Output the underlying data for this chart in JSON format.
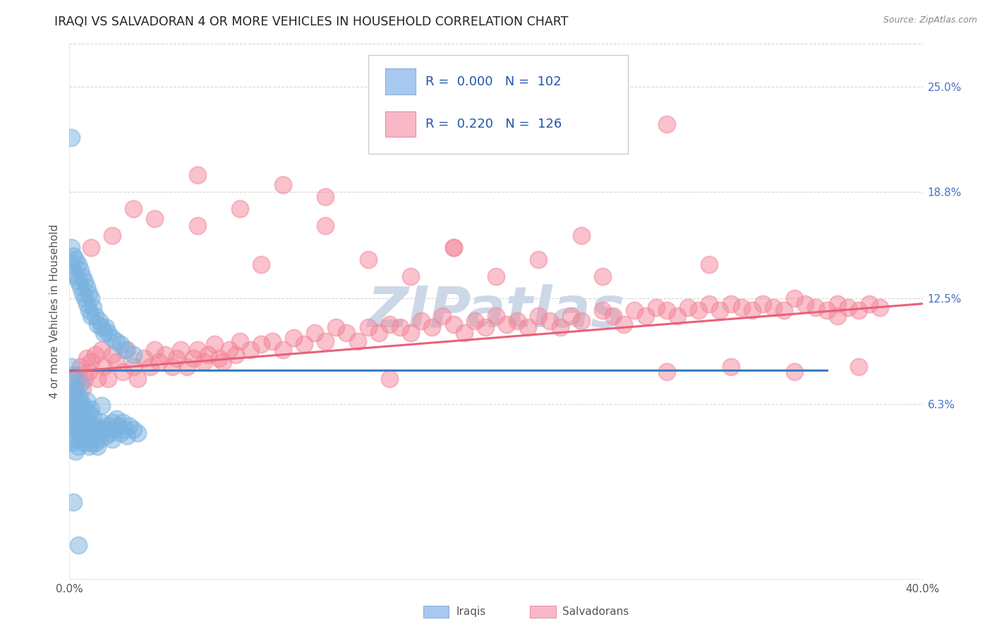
{
  "title": "IRAQI VS SALVADORAN 4 OR MORE VEHICLES IN HOUSEHOLD CORRELATION CHART",
  "source_text": "Source: ZipAtlas.com",
  "ylabel": "4 or more Vehicles in Household",
  "xlim": [
    0.0,
    0.4
  ],
  "ylim": [
    -0.04,
    0.275
  ],
  "ytick_positions": [
    0.063,
    0.125,
    0.188,
    0.25
  ],
  "yticklabels": [
    "6.3%",
    "12.5%",
    "18.8%",
    "25.0%"
  ],
  "iraqi_color": "#7ab3e0",
  "salvadoran_color": "#f4879a",
  "iraqi_line_color": "#3d7cbf",
  "salvadoran_line_color": "#e8607a",
  "grid_color": "#cccccc",
  "watermark_color": "#ccd8e8",
  "background_color": "#ffffff",
  "legend_iraqi_color": "#a8c8f0",
  "legend_salv_color": "#f8b8c8",
  "iraqi_x": [
    0.001,
    0.001,
    0.001,
    0.001,
    0.001,
    0.001,
    0.001,
    0.002,
    0.002,
    0.002,
    0.002,
    0.002,
    0.002,
    0.003,
    0.003,
    0.003,
    0.003,
    0.003,
    0.004,
    0.004,
    0.004,
    0.004,
    0.005,
    0.005,
    0.005,
    0.005,
    0.006,
    0.006,
    0.006,
    0.007,
    0.007,
    0.007,
    0.008,
    0.008,
    0.008,
    0.009,
    0.009,
    0.009,
    0.01,
    0.01,
    0.01,
    0.011,
    0.011,
    0.012,
    0.012,
    0.013,
    0.013,
    0.014,
    0.015,
    0.015,
    0.016,
    0.017,
    0.018,
    0.019,
    0.02,
    0.02,
    0.021,
    0.022,
    0.023,
    0.024,
    0.025,
    0.026,
    0.027,
    0.028,
    0.03,
    0.032,
    0.001,
    0.001,
    0.002,
    0.002,
    0.003,
    0.003,
    0.004,
    0.004,
    0.005,
    0.005,
    0.006,
    0.006,
    0.007,
    0.007,
    0.008,
    0.008,
    0.009,
    0.009,
    0.01,
    0.01,
    0.011,
    0.012,
    0.013,
    0.014,
    0.015,
    0.016,
    0.017,
    0.018,
    0.02,
    0.022,
    0.024,
    0.026,
    0.03,
    0.001,
    0.002,
    0.004
  ],
  "iraqi_y": [
    0.055,
    0.065,
    0.075,
    0.085,
    0.05,
    0.06,
    0.04,
    0.06,
    0.07,
    0.08,
    0.05,
    0.045,
    0.058,
    0.062,
    0.072,
    0.052,
    0.042,
    0.035,
    0.058,
    0.068,
    0.048,
    0.038,
    0.065,
    0.055,
    0.045,
    0.075,
    0.062,
    0.052,
    0.042,
    0.06,
    0.05,
    0.04,
    0.055,
    0.065,
    0.045,
    0.058,
    0.048,
    0.038,
    0.06,
    0.05,
    0.04,
    0.055,
    0.045,
    0.05,
    0.04,
    0.048,
    0.038,
    0.042,
    0.052,
    0.062,
    0.048,
    0.044,
    0.05,
    0.046,
    0.052,
    0.042,
    0.048,
    0.054,
    0.05,
    0.046,
    0.052,
    0.048,
    0.044,
    0.05,
    0.048,
    0.046,
    0.155,
    0.145,
    0.15,
    0.14,
    0.148,
    0.138,
    0.145,
    0.135,
    0.142,
    0.132,
    0.138,
    0.128,
    0.135,
    0.125,
    0.132,
    0.122,
    0.128,
    0.118,
    0.125,
    0.115,
    0.12,
    0.115,
    0.11,
    0.112,
    0.108,
    0.105,
    0.108,
    0.105,
    0.102,
    0.1,
    0.098,
    0.095,
    0.092,
    0.22,
    0.005,
    -0.02
  ],
  "salvadoran_x": [
    0.002,
    0.003,
    0.004,
    0.005,
    0.006,
    0.007,
    0.008,
    0.009,
    0.01,
    0.012,
    0.013,
    0.015,
    0.016,
    0.018,
    0.02,
    0.022,
    0.025,
    0.027,
    0.03,
    0.032,
    0.035,
    0.038,
    0.04,
    0.042,
    0.045,
    0.048,
    0.05,
    0.052,
    0.055,
    0.058,
    0.06,
    0.063,
    0.065,
    0.068,
    0.07,
    0.072,
    0.075,
    0.078,
    0.08,
    0.085,
    0.09,
    0.095,
    0.1,
    0.105,
    0.11,
    0.115,
    0.12,
    0.125,
    0.13,
    0.135,
    0.14,
    0.145,
    0.15,
    0.155,
    0.16,
    0.165,
    0.17,
    0.175,
    0.18,
    0.185,
    0.19,
    0.195,
    0.2,
    0.205,
    0.21,
    0.215,
    0.22,
    0.225,
    0.23,
    0.235,
    0.24,
    0.25,
    0.255,
    0.26,
    0.265,
    0.27,
    0.275,
    0.28,
    0.285,
    0.29,
    0.295,
    0.3,
    0.305,
    0.31,
    0.315,
    0.32,
    0.325,
    0.33,
    0.335,
    0.34,
    0.345,
    0.35,
    0.355,
    0.36,
    0.365,
    0.37,
    0.375,
    0.38,
    0.01,
    0.02,
    0.04,
    0.06,
    0.08,
    0.1,
    0.12,
    0.14,
    0.16,
    0.18,
    0.2,
    0.22,
    0.25,
    0.28,
    0.31,
    0.34,
    0.37,
    0.06,
    0.12,
    0.18,
    0.24,
    0.3,
    0.36,
    0.03,
    0.09,
    0.15,
    0.28
  ],
  "salvadoran_y": [
    0.068,
    0.075,
    0.08,
    0.085,
    0.072,
    0.078,
    0.09,
    0.082,
    0.088,
    0.092,
    0.078,
    0.095,
    0.085,
    0.078,
    0.092,
    0.088,
    0.082,
    0.095,
    0.085,
    0.078,
    0.09,
    0.085,
    0.095,
    0.088,
    0.092,
    0.085,
    0.09,
    0.095,
    0.085,
    0.09,
    0.095,
    0.088,
    0.092,
    0.098,
    0.09,
    0.088,
    0.095,
    0.092,
    0.1,
    0.095,
    0.098,
    0.1,
    0.095,
    0.102,
    0.098,
    0.105,
    0.1,
    0.108,
    0.105,
    0.1,
    0.108,
    0.105,
    0.11,
    0.108,
    0.105,
    0.112,
    0.108,
    0.115,
    0.11,
    0.105,
    0.112,
    0.108,
    0.115,
    0.11,
    0.112,
    0.108,
    0.115,
    0.112,
    0.108,
    0.115,
    0.112,
    0.118,
    0.115,
    0.11,
    0.118,
    0.115,
    0.12,
    0.118,
    0.115,
    0.12,
    0.118,
    0.122,
    0.118,
    0.122,
    0.12,
    0.118,
    0.122,
    0.12,
    0.118,
    0.125,
    0.122,
    0.12,
    0.118,
    0.122,
    0.12,
    0.118,
    0.122,
    0.12,
    0.155,
    0.162,
    0.172,
    0.168,
    0.178,
    0.192,
    0.168,
    0.148,
    0.138,
    0.155,
    0.138,
    0.148,
    0.138,
    0.082,
    0.085,
    0.082,
    0.085,
    0.198,
    0.185,
    0.155,
    0.162,
    0.145,
    0.115,
    0.178,
    0.145,
    0.078,
    0.228
  ],
  "iraqi_line_y": 0.083,
  "iraqi_line_xmax": 0.355,
  "salv_line_x0": 0.0,
  "salv_line_x1": 0.4,
  "salv_line_y0": 0.082,
  "salv_line_y1": 0.122
}
